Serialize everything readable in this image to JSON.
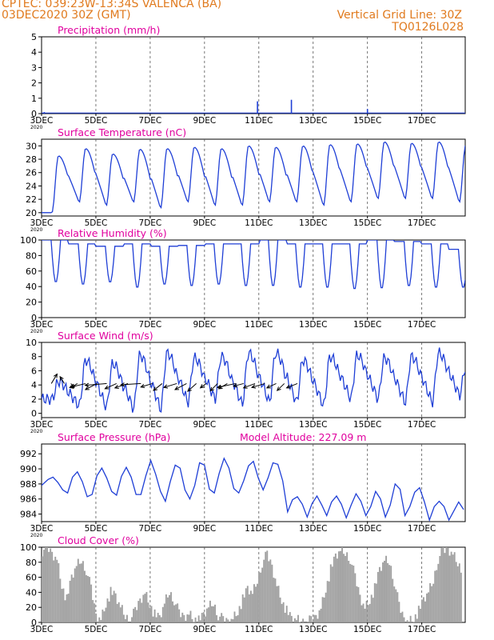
{
  "header": {
    "line1": "CPTEC:   039:23W-13:34S   VALENCA (BA)",
    "line2": "03DEC2020 30Z (GMT)",
    "grid_note": "Vertical Grid Line: 30Z",
    "code": "TQ0126L028"
  },
  "colors": {
    "header": "#e07a1e",
    "title": "#e0009e",
    "line": "#1f3fd6",
    "bar": "#a0a0a0",
    "grid": "#555555",
    "arrow": "#000000"
  },
  "chart_data": [
    {
      "type": "bar",
      "title": "Precipitation (mm/h)",
      "ylim": [
        0,
        5
      ],
      "yticks": [
        0,
        1,
        2,
        3,
        4,
        5
      ],
      "xticks": [
        "3DEC",
        "5DEC",
        "7DEC",
        "9DEC",
        "11DEC",
        "13DEC",
        "15DEC",
        "17DEC"
      ],
      "xlabel_note": "2020",
      "events": [
        {
          "day": 0.1,
          "value": 0.1
        },
        {
          "day": 7.95,
          "value": 0.8
        },
        {
          "day": 9.2,
          "value": 0.9
        },
        {
          "day": 12.0,
          "value": 0.3
        }
      ]
    },
    {
      "type": "line",
      "title": "Surface Temperature (nC)",
      "ylim": [
        19.5,
        31
      ],
      "yticks": [
        20,
        22,
        24,
        26,
        28,
        30
      ],
      "xticks": [
        "3DEC",
        "5DEC",
        "7DEC",
        "9DEC",
        "11DEC",
        "13DEC",
        "15DEC",
        "17DEC"
      ],
      "xlabel_note": "2020",
      "series": [
        {
          "daily_max": [
            28.5,
            29.6,
            28.8,
            29.5,
            29.6,
            29.8,
            29.6,
            30.0,
            29.8,
            30.0,
            30.2,
            30.3,
            30.6,
            30.4,
            30.6,
            30.2
          ],
          "daily_min": [
            20.0,
            21.5,
            21.0,
            21.5,
            20.6,
            21.5,
            21.0,
            21.0,
            21.5,
            21.5,
            21.0,
            21.5,
            22.0,
            22.0,
            22.0,
            21.5
          ]
        }
      ]
    },
    {
      "type": "line",
      "title": "Relative Humidity (%)",
      "ylim": [
        0,
        100
      ],
      "yticks": [
        0,
        20,
        40,
        60,
        80,
        100
      ],
      "xticks": [
        "3DEC",
        "5DEC",
        "7DEC",
        "9DEC",
        "11DEC",
        "13DEC",
        "15DEC",
        "17DEC"
      ],
      "xlabel_note": "2020",
      "series": [
        {
          "daily_max": [
            100,
            95,
            92,
            95,
            92,
            93,
            95,
            95,
            100,
            95,
            95,
            95,
            100,
            98,
            95,
            88
          ],
          "daily_min": [
            45,
            42,
            45,
            38,
            42,
            40,
            42,
            40,
            40,
            38,
            38,
            36,
            37,
            40,
            38,
            38
          ]
        }
      ]
    },
    {
      "type": "line",
      "title": "Surface Wind (m/s)",
      "ylim": [
        -0.6,
        10
      ],
      "yticks": [
        0,
        2,
        4,
        6,
        8,
        10
      ],
      "xticks": [
        "3DEC",
        "5DEC",
        "7DEC",
        "9DEC",
        "11DEC",
        "13DEC",
        "15DEC",
        "17DEC"
      ],
      "xlabel_note": "2020",
      "series": [
        {
          "daily_max": [
            4.5,
            7.5,
            7.0,
            8.2,
            8.5,
            7.8,
            8.0,
            8.5,
            8.5,
            7.5,
            8.0,
            8.2,
            7.8,
            8.0,
            8.5,
            6.5
          ],
          "daily_min": [
            2.0,
            1.0,
            0.8,
            0.6,
            0.5,
            1.5,
            2.0,
            1.2,
            1.5,
            1.5,
            1.0,
            2.0,
            2.0,
            1.5,
            1.5,
            2.5
          ]
        }
      ],
      "vectors": [
        {
          "day": 0.1,
          "u": 0.8,
          "v": 2.2
        },
        {
          "day": 0.9,
          "u": -0.6,
          "v": 1.6
        },
        {
          "day": 1.3,
          "u": 0.4,
          "v": -1.0
        },
        {
          "day": 1.7,
          "u": -0.9,
          "v": -0.9
        },
        {
          "day": 2.2,
          "u": -2.2,
          "v": -0.9
        },
        {
          "day": 2.9,
          "u": -1.6,
          "v": -1.4
        },
        {
          "day": 3.5,
          "u": -3.0,
          "v": -0.4
        },
        {
          "day": 4.1,
          "u": -1.6,
          "v": -1.2
        },
        {
          "day": 4.8,
          "u": -1.8,
          "v": -1.0
        },
        {
          "day": 5.6,
          "u": -2.8,
          "v": -0.3
        },
        {
          "day": 6.3,
          "u": -1.6,
          "v": -0.8
        },
        {
          "day": 6.9,
          "u": -1.2,
          "v": -1.6
        },
        {
          "day": 7.8,
          "u": -1.8,
          "v": -0.9
        },
        {
          "day": 8.4,
          "u": -1.6,
          "v": -1.4
        },
        {
          "day": 9.0,
          "u": -1.2,
          "v": -1.8
        },
        {
          "day": 9.6,
          "u": -0.8,
          "v": -1.0
        },
        {
          "day": 10.3,
          "u": -1.0,
          "v": -1.7
        },
        {
          "day": 10.9,
          "u": -1.2,
          "v": -1.2
        },
        {
          "day": 11.4,
          "u": -2.5,
          "v": -0.9
        },
        {
          "day": 11.9,
          "u": -1.4,
          "v": -0.6
        },
        {
          "day": 12.6,
          "u": -1.6,
          "v": -1.0
        },
        {
          "day": 13.2,
          "u": -1.8,
          "v": -0.9
        },
        {
          "day": 13.9,
          "u": -1.3,
          "v": -1.0
        },
        {
          "day": 14.4,
          "u": -1.0,
          "v": -1.6
        },
        {
          "day": 15.2,
          "u": -1.5,
          "v": -1.0
        }
      ]
    },
    {
      "type": "line",
      "title": "Surface Pressure (hPa)",
      "subtitle": "Model Altitude: 227.09 m",
      "ylim": [
        983,
        993.3
      ],
      "yticks": [
        984,
        986,
        988,
        990,
        992
      ],
      "xticks": [
        "3DEC",
        "5DEC",
        "7DEC",
        "9DEC",
        "11DEC",
        "13DEC",
        "15DEC",
        "17DEC"
      ],
      "xlabel_note": "2020",
      "series": [
        {
          "points": [
            [
              0.0,
              987.8
            ],
            [
              0.4,
              988.6
            ],
            [
              0.7,
              988.9
            ],
            [
              1.0,
              988.2
            ],
            [
              1.3,
              987.2
            ],
            [
              1.6,
              986.8
            ],
            [
              1.9,
              988.9
            ],
            [
              2.2,
              989.6
            ],
            [
              2.5,
              988.3
            ],
            [
              2.8,
              986.3
            ],
            [
              3.1,
              986.6
            ],
            [
              3.4,
              989.1
            ],
            [
              3.7,
              990.1
            ],
            [
              4.0,
              988.8
            ],
            [
              4.3,
              987.0
            ],
            [
              4.6,
              986.5
            ],
            [
              4.9,
              989.0
            ],
            [
              5.2,
              990.2
            ],
            [
              5.5,
              988.9
            ],
            [
              5.8,
              986.6
            ],
            [
              6.1,
              986.6
            ],
            [
              6.4,
              989.1
            ],
            [
              6.7,
              991.1
            ],
            [
              7.0,
              989.3
            ],
            [
              7.3,
              987.0
            ],
            [
              7.6,
              985.7
            ],
            [
              7.9,
              988.3
            ],
            [
              8.2,
              990.5
            ],
            [
              8.5,
              990.1
            ],
            [
              8.8,
              987.2
            ],
            [
              9.1,
              986.0
            ],
            [
              9.4,
              987.8
            ],
            [
              9.7,
              990.8
            ],
            [
              10.0,
              990.5
            ],
            [
              10.3,
              987.3
            ],
            [
              10.6,
              986.8
            ],
            [
              10.9,
              989.4
            ],
            [
              11.2,
              991.4
            ],
            [
              11.5,
              990.1
            ],
            [
              11.8,
              987.4
            ],
            [
              12.1,
              986.8
            ],
            [
              12.4,
              988.4
            ],
            [
              12.7,
              990.4
            ],
            [
              13.0,
              991.0
            ],
            [
              13.3,
              988.8
            ],
            [
              13.6,
              987.2
            ],
            [
              13.9,
              988.8
            ],
            [
              14.2,
              990.8
            ],
            [
              14.5,
              990.6
            ],
            [
              14.8,
              988.4
            ],
            [
              15.1,
              984.3
            ],
            [
              15.4,
              985.9
            ],
            [
              15.7,
              986.3
            ],
            [
              16.0,
              985.3
            ],
            [
              16.3,
              983.6
            ],
            [
              16.6,
              985.4
            ],
            [
              16.9,
              986.4
            ],
            [
              17.2,
              985.2
            ],
            [
              17.5,
              983.8
            ],
            [
              17.8,
              985.6
            ],
            [
              18.1,
              986.4
            ],
            [
              18.4,
              985.3
            ],
            [
              18.7,
              983.5
            ],
            [
              19.0,
              985.2
            ],
            [
              19.3,
              986.7
            ],
            [
              19.6,
              985.7
            ],
            [
              19.9,
              983.8
            ],
            [
              20.2,
              985.0
            ],
            [
              20.5,
              987.0
            ],
            [
              20.8,
              986.0
            ],
            [
              21.1,
              983.6
            ],
            [
              21.4,
              985.2
            ],
            [
              21.7,
              988.0
            ],
            [
              22.0,
              987.3
            ],
            [
              22.3,
              983.8
            ],
            [
              22.6,
              985.0
            ],
            [
              22.9,
              986.9
            ],
            [
              23.2,
              987.5
            ],
            [
              23.5,
              985.6
            ],
            [
              23.8,
              983.2
            ],
            [
              24.1,
              985.0
            ],
            [
              24.4,
              985.7
            ],
            [
              24.7,
              985.0
            ],
            [
              25.0,
              983.2
            ],
            [
              25.3,
              984.4
            ],
            [
              25.6,
              985.6
            ],
            [
              25.9,
              984.6
            ]
          ]
        }
      ]
    },
    {
      "type": "area",
      "title": "Cloud Cover (%)",
      "ylim": [
        0,
        100
      ],
      "yticks": [
        0,
        20,
        40,
        60,
        80,
        100
      ],
      "xticks": [
        "3DEC",
        "5DEC",
        "7DEC",
        "9DEC",
        "11DEC",
        "13DEC",
        "15DEC",
        "17DEC"
      ],
      "series": [
        {
          "points": [
            [
              0.0,
              95
            ],
            [
              0.3,
              100
            ],
            [
              0.6,
              92
            ],
            [
              0.9,
              85
            ],
            [
              1.2,
              50
            ],
            [
              1.5,
              30
            ],
            [
              1.8,
              60
            ],
            [
              2.1,
              75
            ],
            [
              2.4,
              82
            ],
            [
              2.7,
              70
            ],
            [
              3.0,
              45
            ],
            [
              3.3,
              10
            ],
            [
              3.6,
              5
            ],
            [
              3.9,
              25
            ],
            [
              4.2,
              40
            ],
            [
              4.5,
              35
            ],
            [
              4.8,
              20
            ],
            [
              5.1,
              8
            ],
            [
              5.4,
              3
            ],
            [
              5.7,
              15
            ],
            [
              6.0,
              30
            ],
            [
              6.3,
              40
            ],
            [
              6.6,
              25
            ],
            [
              6.9,
              10
            ],
            [
              7.2,
              6
            ],
            [
              7.5,
              25
            ],
            [
              7.8,
              40
            ],
            [
              8.1,
              30
            ],
            [
              8.4,
              12
            ],
            [
              8.7,
              8
            ],
            [
              9.0,
              12
            ],
            [
              9.3,
              6
            ],
            [
              9.6,
              2
            ],
            [
              9.9,
              10
            ],
            [
              10.2,
              20
            ],
            [
              10.5,
              25
            ],
            [
              10.8,
              10
            ],
            [
              11.1,
              3
            ],
            [
              11.4,
              2
            ],
            [
              11.7,
              6
            ],
            [
              12.0,
              15
            ],
            [
              12.3,
              30
            ],
            [
              12.6,
              45
            ],
            [
              12.9,
              38
            ],
            [
              13.2,
              55
            ],
            [
              13.5,
              80
            ],
            [
              13.8,
              90
            ],
            [
              14.1,
              75
            ],
            [
              14.4,
              50
            ],
            [
              14.7,
              30
            ],
            [
              15.0,
              15
            ],
            [
              15.3,
              5
            ],
            [
              15.6,
              3
            ],
            [
              15.9,
              2
            ],
            [
              16.2,
              0
            ],
            [
              16.5,
              3
            ],
            [
              16.8,
              8
            ],
            [
              17.1,
              20
            ],
            [
              17.4,
              45
            ],
            [
              17.7,
              70
            ],
            [
              18.0,
              88
            ],
            [
              18.3,
              95
            ],
            [
              18.6,
              92
            ],
            [
              18.9,
              85
            ],
            [
              19.2,
              60
            ],
            [
              19.5,
              35
            ],
            [
              19.8,
              20
            ],
            [
              20.1,
              30
            ],
            [
              20.4,
              45
            ],
            [
              20.7,
              70
            ],
            [
              21.0,
              82
            ],
            [
              21.3,
              80
            ],
            [
              21.6,
              55
            ],
            [
              21.9,
              22
            ],
            [
              22.2,
              5
            ],
            [
              22.5,
              2
            ],
            [
              22.8,
              6
            ],
            [
              23.1,
              15
            ],
            [
              23.4,
              30
            ],
            [
              23.7,
              40
            ],
            [
              24.0,
              55
            ],
            [
              24.3,
              85
            ],
            [
              24.6,
              95
            ],
            [
              24.9,
              98
            ],
            [
              25.2,
              92
            ],
            [
              25.5,
              80
            ],
            [
              25.8,
              70
            ]
          ]
        }
      ]
    }
  ]
}
